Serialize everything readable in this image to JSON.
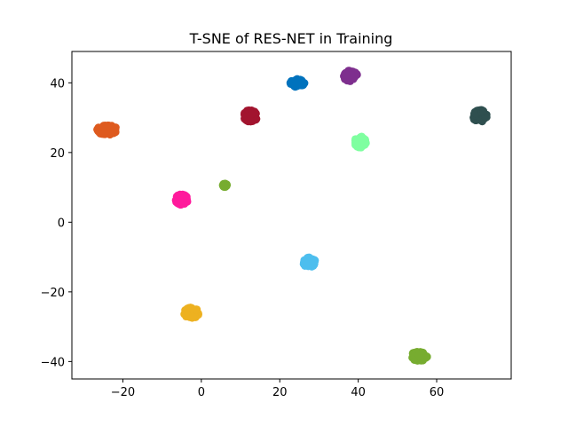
{
  "chart_data": {
    "type": "scatter",
    "title": "T-SNE of RES-NET in Training",
    "xlabel": "",
    "ylabel": "",
    "xlim": [
      -33,
      79
    ],
    "ylim": [
      -45,
      49
    ],
    "xticks": [
      -20,
      0,
      20,
      40,
      60
    ],
    "yticks": [
      -40,
      -20,
      0,
      20,
      40
    ],
    "grid": false,
    "legend": "none",
    "clusters": [
      {
        "color": "#DE5A1E",
        "center": [
          -24,
          26.5
        ],
        "spread": [
          2.6,
          1.4
        ]
      },
      {
        "color": "#FF1A9C",
        "center": [
          -5,
          6.5
        ],
        "spread": [
          1.6,
          1.5
        ]
      },
      {
        "color": "#77AC30",
        "center": [
          6,
          10.6
        ],
        "spread": [
          0.5,
          0.5
        ]
      },
      {
        "color": "#A2142F",
        "center": [
          12.5,
          30.5
        ],
        "spread": [
          1.8,
          1.7
        ]
      },
      {
        "color": "#0072BD",
        "center": [
          24.5,
          40
        ],
        "spread": [
          1.8,
          1.2
        ]
      },
      {
        "color": "#7E2F8E",
        "center": [
          38,
          42
        ],
        "spread": [
          1.8,
          1.6
        ]
      },
      {
        "color": "#7FFFA0",
        "center": [
          40.5,
          23
        ],
        "spread": [
          1.5,
          1.6
        ]
      },
      {
        "color": "#2F4F4F",
        "center": [
          71,
          30.5
        ],
        "spread": [
          1.8,
          1.8
        ]
      },
      {
        "color": "#4DBEEE",
        "center": [
          27.5,
          -11.5
        ],
        "spread": [
          1.6,
          1.4
        ]
      },
      {
        "color": "#EDB120",
        "center": [
          -2.5,
          -26
        ],
        "spread": [
          2.0,
          1.5
        ]
      },
      {
        "color": "#77AC30",
        "center": [
          55.5,
          -38.5
        ],
        "spread": [
          2.2,
          1.4
        ]
      }
    ]
  }
}
